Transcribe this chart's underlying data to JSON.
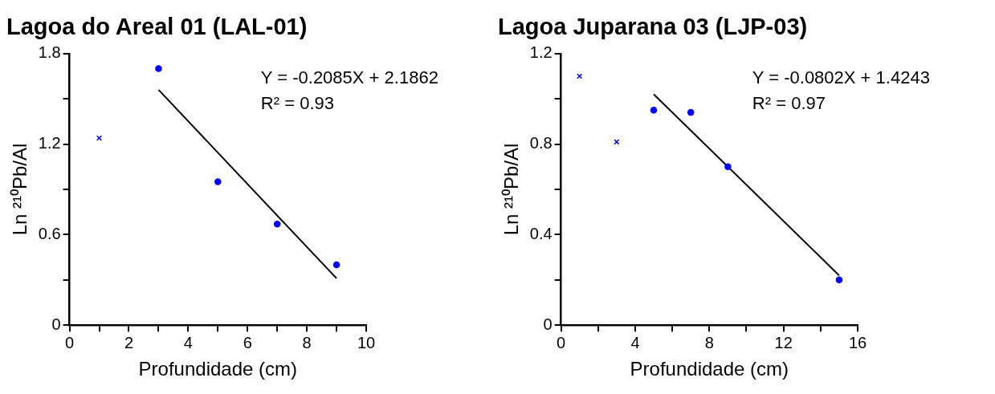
{
  "chart_data": [
    {
      "type": "scatter",
      "title": "Lagoa do Areal 01 (LAL-01)",
      "xlabel": "Profundidade (cm)",
      "ylabel": "Ln ²¹⁰Pb/Al",
      "xlim": [
        0,
        10
      ],
      "ylim": [
        0,
        1.8
      ],
      "xticks": [
        0,
        {
          "value": 1,
          "label": null
        },
        2,
        {
          "value": 3,
          "label": null
        },
        4,
        {
          "value": 5,
          "label": null
        },
        6,
        {
          "value": 7,
          "label": null
        },
        8,
        {
          "value": 9,
          "label": null
        },
        10
      ],
      "yticks": [
        0,
        {
          "value": 0.3,
          "label": null
        },
        0.6,
        {
          "value": 0.9,
          "label": null
        },
        1.2,
        {
          "value": 1.5,
          "label": null
        },
        1.8
      ],
      "grid": false,
      "legend": false,
      "annotations": [
        "Y = -0.2085X + 2.1862",
        "R² = 0.93"
      ],
      "series": [
        {
          "marker": "cross",
          "color": "#0000ff",
          "x": [
            1
          ],
          "values": [
            1.24
          ]
        },
        {
          "marker": "circle",
          "color": "#0000ff",
          "x": [
            3,
            5,
            7,
            9
          ],
          "values": [
            1.7,
            0.95,
            0.67,
            0.4
          ]
        },
        {
          "type": "line",
          "marker": "none",
          "color": "#000000",
          "x": [
            3,
            9
          ],
          "values": [
            1.56,
            0.31
          ]
        }
      ]
    },
    {
      "type": "scatter",
      "title": "Lagoa Juparana 03 (LJP-03)",
      "xlabel": "Profundidade (cm)",
      "ylabel": "Ln ²¹⁰Pb/Al",
      "xlim": [
        0,
        16
      ],
      "ylim": [
        0,
        1.2
      ],
      "xticks": [
        0,
        {
          "value": 2,
          "label": null
        },
        4,
        {
          "value": 6,
          "label": null
        },
        8,
        {
          "value": 10,
          "label": null
        },
        12,
        {
          "value": 14,
          "label": null
        },
        16
      ],
      "yticks": [
        0,
        {
          "value": 0.2,
          "label": null
        },
        0.4,
        {
          "value": 0.6,
          "label": null
        },
        0.8,
        {
          "value": 1.0,
          "label": null
        },
        1.2
      ],
      "grid": false,
      "legend": false,
      "annotations": [
        "Y = -0.0802X + 1.4243",
        "R² = 0.97"
      ],
      "series": [
        {
          "marker": "cross",
          "color": "#0000ff",
          "x": [
            1,
            3
          ],
          "values": [
            1.1,
            0.81
          ]
        },
        {
          "marker": "circle",
          "color": "#0000ff",
          "x": [
            5,
            7,
            9,
            15
          ],
          "values": [
            0.95,
            0.94,
            0.7,
            0.2
          ]
        },
        {
          "type": "line",
          "marker": "none",
          "color": "#000000",
          "x": [
            5,
            15
          ],
          "values": [
            1.02,
            0.22
          ]
        }
      ]
    }
  ]
}
